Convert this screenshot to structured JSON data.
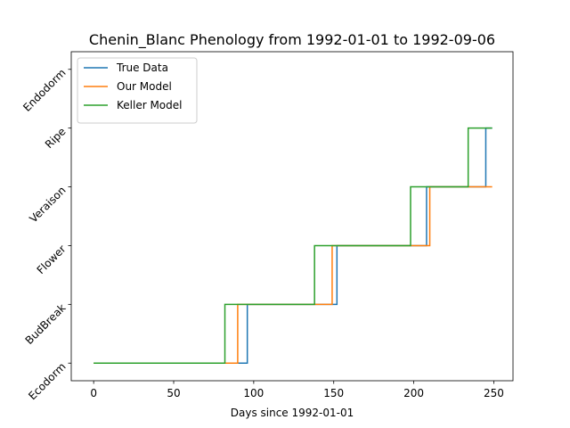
{
  "chart_data": {
    "type": "line",
    "title": "Chenin_Blanc Phenology from 1992-01-01 to 1992-09-06",
    "xlabel": "Days since 1992-01-01",
    "ylabel": "",
    "xlim": [
      -14,
      262
    ],
    "ylim": [
      -0.3,
      5.3
    ],
    "x_ticks": [
      0,
      50,
      100,
      150,
      200,
      250
    ],
    "y_ticks": [
      0,
      1,
      2,
      3,
      4,
      5
    ],
    "y_tick_labels": [
      "Ecodorm",
      "BudBreak",
      "Flower",
      "Veraison",
      "Ripe",
      "Endodorm"
    ],
    "grid": false,
    "legend_position": "top-left",
    "series": [
      {
        "name": "True Data",
        "color": "#1f77b4",
        "x": [
          0,
          96,
          96,
          152,
          152,
          208,
          208,
          245,
          245,
          249
        ],
        "y": [
          0,
          0,
          1,
          1,
          2,
          2,
          3,
          3,
          4,
          4
        ]
      },
      {
        "name": "Our Model",
        "color": "#ff7f0e",
        "x": [
          0,
          90,
          90,
          149,
          149,
          210,
          210,
          249
        ],
        "y": [
          0,
          0,
          1,
          1,
          2,
          2,
          3,
          3
        ]
      },
      {
        "name": "Keller Model",
        "color": "#2ca02c",
        "x": [
          0,
          82,
          82,
          138,
          138,
          198,
          198,
          234,
          234,
          249
        ],
        "y": [
          0,
          0,
          1,
          1,
          2,
          2,
          3,
          3,
          4,
          4
        ]
      }
    ]
  }
}
